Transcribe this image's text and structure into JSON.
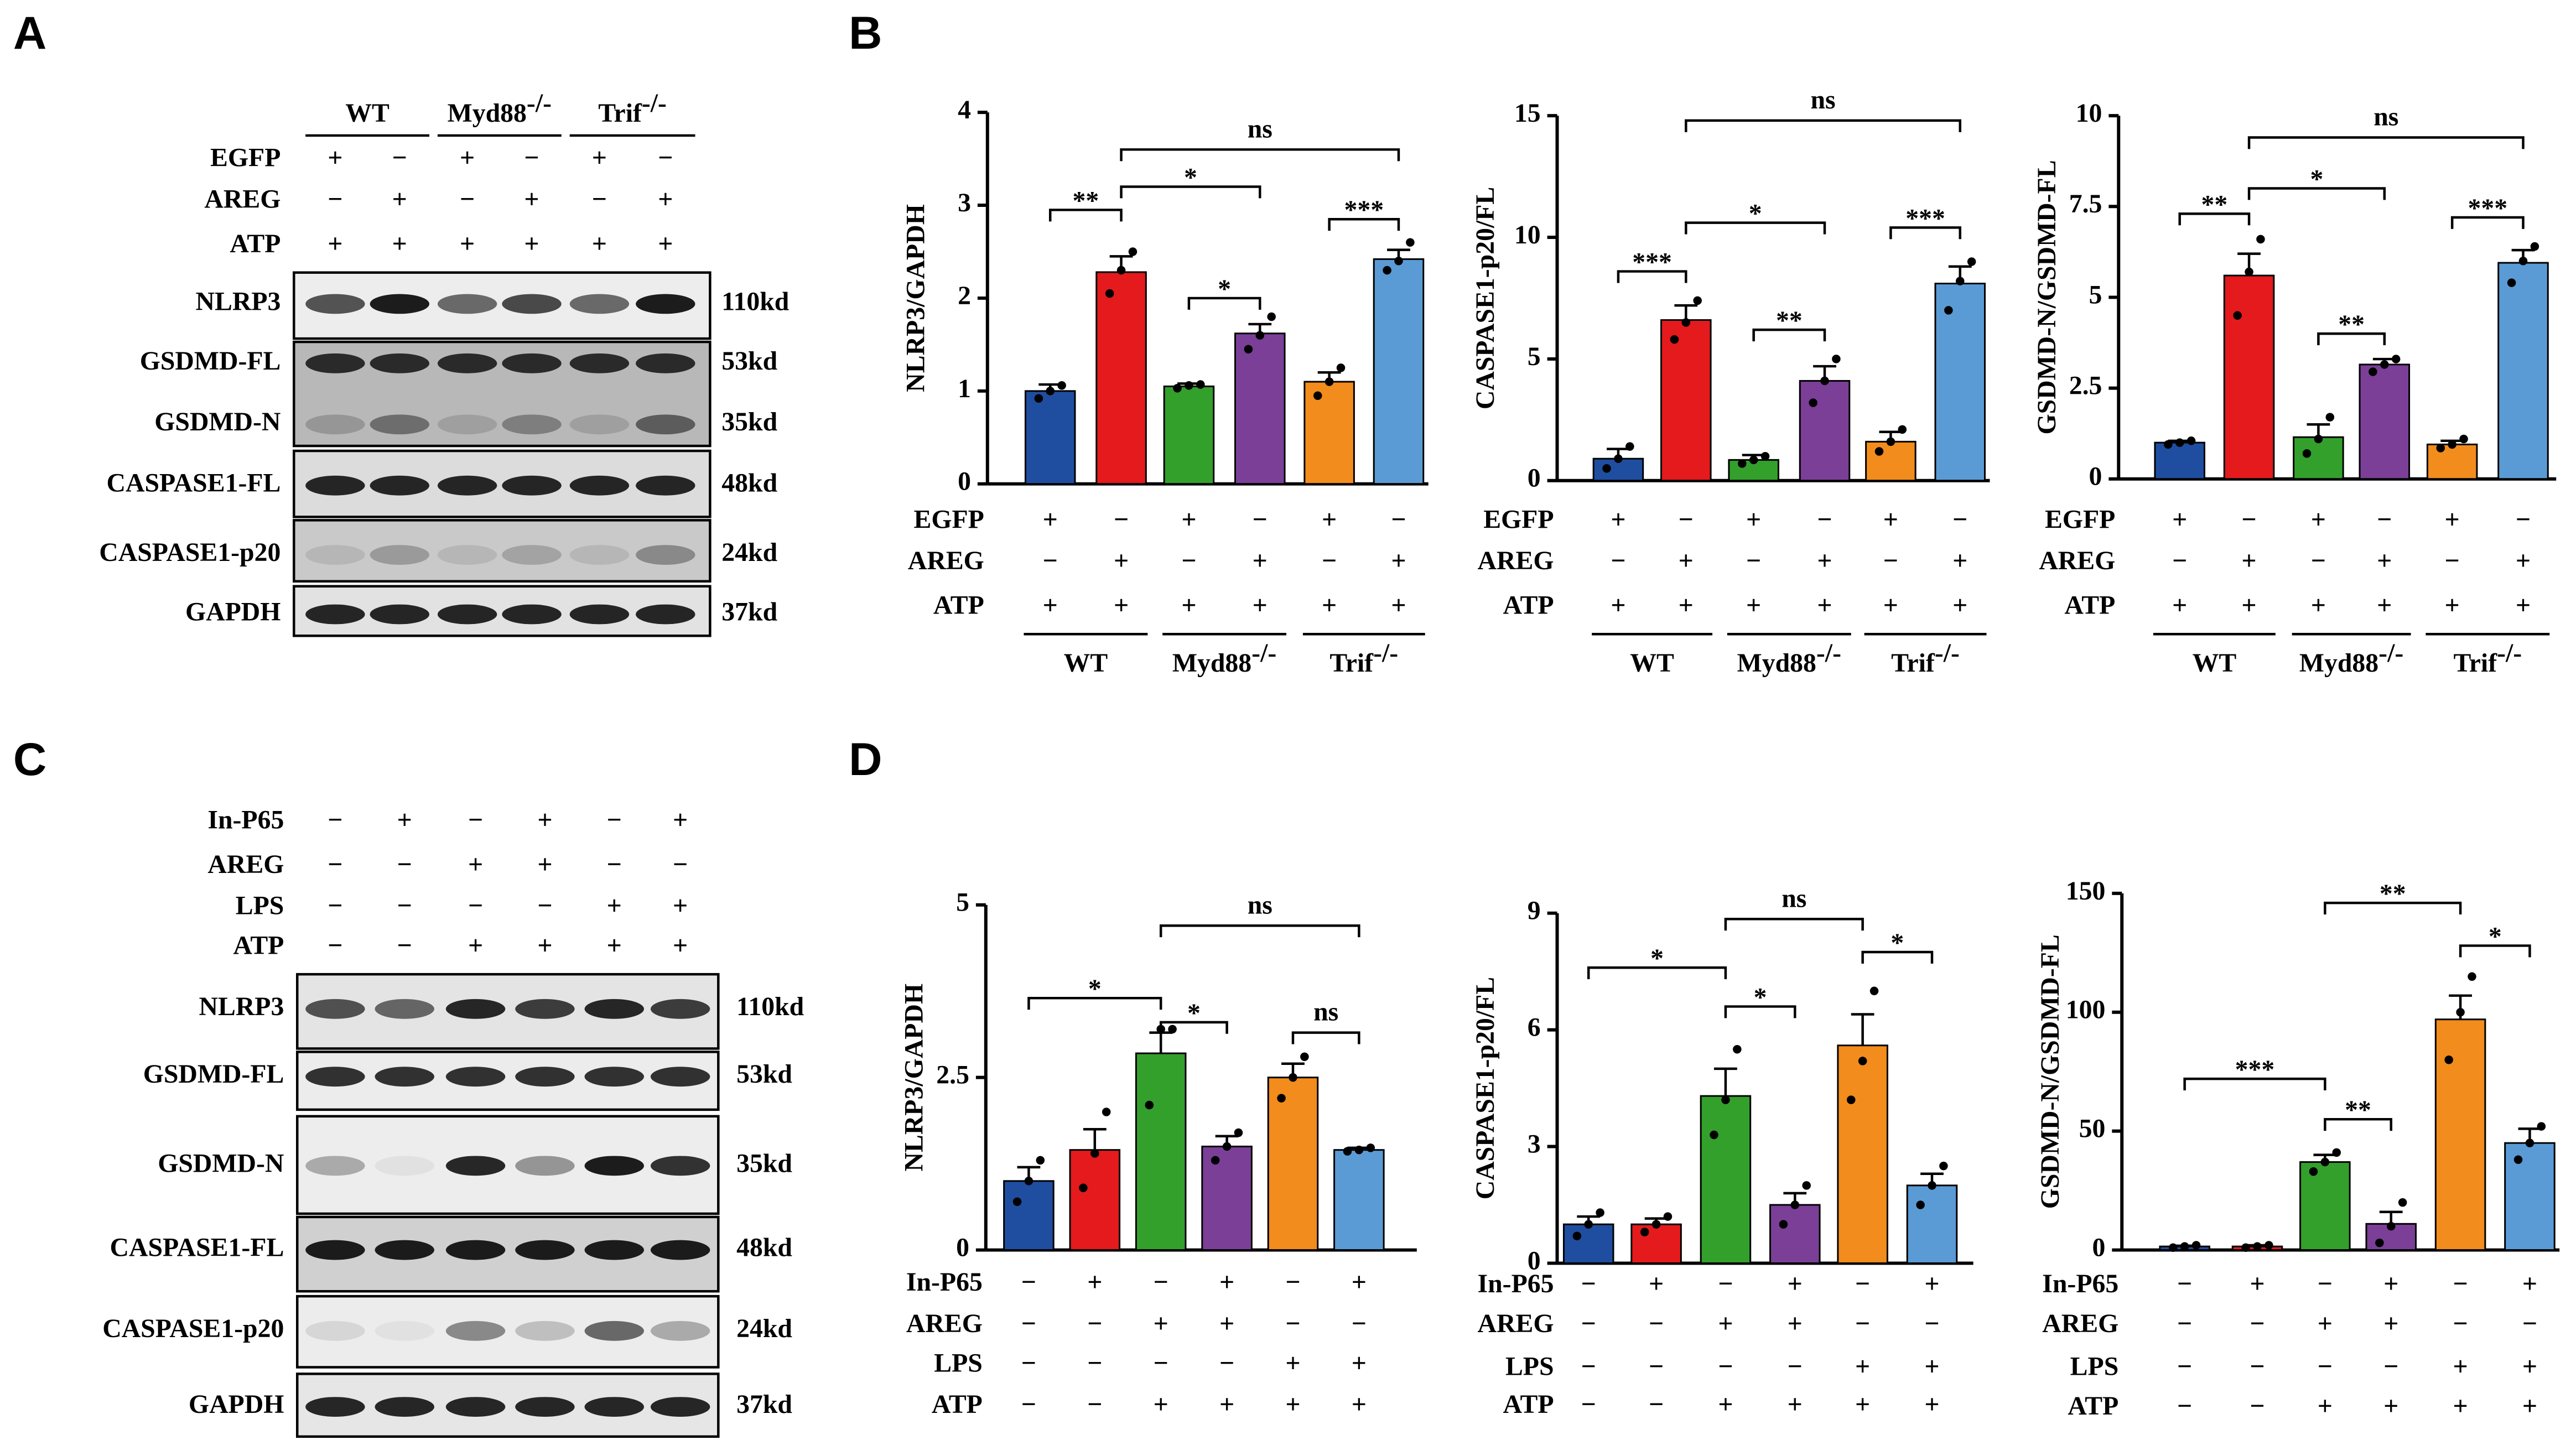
{
  "panel_labels": [
    "A",
    "B",
    "C",
    "D"
  ],
  "blots": [
    {
      "groups": [
        {
          "name": "WT"
        },
        {
          "name": "Myd88",
          "sup": "-/-"
        },
        {
          "name": "Trif",
          "sup": "-/-"
        }
      ],
      "treatments": [
        {
          "name": "EGFP",
          "signs": [
            "+",
            "−",
            "+",
            "−",
            "+",
            "−"
          ]
        },
        {
          "name": "AREG",
          "signs": [
            "−",
            "+",
            "−",
            "+",
            "−",
            "+"
          ]
        },
        {
          "name": "ATP",
          "signs": [
            "+",
            "+",
            "+",
            "+",
            "+",
            "+"
          ]
        }
      ],
      "proteins": [
        {
          "name": "NLRP3",
          "size": "110kd"
        },
        {
          "name": "GSDMD-FL",
          "size": "53kd"
        },
        {
          "name": "GSDMD-N",
          "size": "35kd"
        },
        {
          "name": "CASPASE1-FL",
          "size": "48kd"
        },
        {
          "name": "CASPASE1-p20",
          "size": "24kd"
        },
        {
          "name": "GAPDH",
          "size": "37kd"
        }
      ]
    },
    {
      "treatments": [
        {
          "name": "In-P65",
          "signs": [
            "−",
            "+",
            "−",
            "+",
            "−",
            "+"
          ]
        },
        {
          "name": "AREG",
          "signs": [
            "−",
            "−",
            "+",
            "+",
            "−",
            "−"
          ]
        },
        {
          "name": "LPS",
          "signs": [
            "−",
            "−",
            "−",
            "−",
            "+",
            "+"
          ]
        },
        {
          "name": "ATP",
          "signs": [
            "−",
            "−",
            "+",
            "+",
            "+",
            "+"
          ]
        }
      ],
      "proteins": [
        {
          "name": "NLRP3",
          "size": "110kd"
        },
        {
          "name": "GSDMD-FL",
          "size": "53kd"
        },
        {
          "name": "GSDMD-N",
          "size": "35kd"
        },
        {
          "name": "CASPASE1-FL",
          "size": "48kd"
        },
        {
          "name": "CASPASE1-p20",
          "size": "24kd"
        },
        {
          "name": "GAPDH",
          "size": "37kd"
        }
      ]
    }
  ],
  "chart_data": [
    {
      "type": "bar",
      "ylabel": "NLRP3/GAPDH",
      "ylim": [
        0,
        4
      ],
      "yticks": [
        0,
        1,
        2,
        3,
        4
      ],
      "colors": [
        "#1f4ea1",
        "#e41a1c",
        "#33a02c",
        "#7b3f98",
        "#f28c1c",
        "#5b9bd5"
      ],
      "values": [
        1.0,
        2.28,
        1.05,
        1.62,
        1.1,
        2.42
      ],
      "errors": [
        0.07,
        0.17,
        0.03,
        0.1,
        0.1,
        0.1
      ],
      "points": [
        [
          0.92,
          1.0,
          1.06
        ],
        [
          2.05,
          2.3,
          2.5
        ],
        [
          1.03,
          1.06,
          1.07
        ],
        [
          1.45,
          1.6,
          1.8
        ],
        [
          0.95,
          1.1,
          1.25
        ],
        [
          2.3,
          2.4,
          2.6
        ]
      ],
      "comparisons": [
        {
          "pair": [
            0,
            1
          ],
          "label": "**",
          "y": 2.95
        },
        {
          "pair": [
            2,
            3
          ],
          "label": "*",
          "y": 2.0
        },
        {
          "pair": [
            4,
            5
          ],
          "label": "***",
          "y": 2.85
        },
        {
          "pair": [
            1,
            3
          ],
          "label": "*",
          "y": 3.2
        },
        {
          "pair": [
            1,
            5
          ],
          "label": "ns",
          "y": 3.6
        }
      ],
      "treatments": [
        {
          "name": "EGFP",
          "signs": [
            "+",
            "−",
            "+",
            "−",
            "+",
            "−"
          ]
        },
        {
          "name": "AREG",
          "signs": [
            "−",
            "+",
            "−",
            "+",
            "−",
            "+"
          ]
        },
        {
          "name": "ATP",
          "signs": [
            "+",
            "+",
            "+",
            "+",
            "+",
            "+"
          ]
        }
      ],
      "groups": [
        {
          "name": "WT"
        },
        {
          "name": "Myd88",
          "sup": "-/-"
        },
        {
          "name": "Trif",
          "sup": "-/-"
        }
      ]
    },
    {
      "type": "bar",
      "ylabel": "CASPASE1-p20/FL",
      "ylim": [
        0,
        15
      ],
      "yticks": [
        0,
        5,
        10,
        15
      ],
      "colors": [
        "#1f4ea1",
        "#e41a1c",
        "#33a02c",
        "#7b3f98",
        "#f28c1c",
        "#5b9bd5"
      ],
      "values": [
        0.9,
        6.6,
        0.85,
        4.1,
        1.6,
        8.1
      ],
      "errors": [
        0.4,
        0.6,
        0.2,
        0.6,
        0.4,
        0.7
      ],
      "points": [
        [
          0.5,
          0.9,
          1.4
        ],
        [
          5.8,
          6.5,
          7.4
        ],
        [
          0.7,
          0.85,
          1.0
        ],
        [
          3.2,
          4.1,
          5.0
        ],
        [
          1.2,
          1.6,
          2.1
        ],
        [
          7.0,
          8.2,
          9.0
        ]
      ],
      "comparisons": [
        {
          "pair": [
            0,
            1
          ],
          "label": "***",
          "y": 8.6
        },
        {
          "pair": [
            2,
            3
          ],
          "label": "**",
          "y": 6.2
        },
        {
          "pair": [
            4,
            5
          ],
          "label": "***",
          "y": 10.4
        },
        {
          "pair": [
            1,
            3
          ],
          "label": "*",
          "y": 10.6
        },
        {
          "pair": [
            1,
            5
          ],
          "label": "ns",
          "y": 14.8
        }
      ],
      "treatments": [
        {
          "name": "EGFP",
          "signs": [
            "+",
            "−",
            "+",
            "−",
            "+",
            "−"
          ]
        },
        {
          "name": "AREG",
          "signs": [
            "−",
            "+",
            "−",
            "+",
            "−",
            "+"
          ]
        },
        {
          "name": "ATP",
          "signs": [
            "+",
            "+",
            "+",
            "+",
            "+",
            "+"
          ]
        }
      ],
      "groups": [
        {
          "name": "WT"
        },
        {
          "name": "Myd88",
          "sup": "-/-"
        },
        {
          "name": "Trif",
          "sup": "-/-"
        }
      ]
    },
    {
      "type": "bar",
      "ylabel": "GSDMD-N/GSDMD-FL",
      "ylim": [
        0,
        10
      ],
      "yticks": [
        0,
        2.5,
        5,
        7.5,
        10
      ],
      "colors": [
        "#1f4ea1",
        "#e41a1c",
        "#33a02c",
        "#7b3f98",
        "#f28c1c",
        "#5b9bd5"
      ],
      "values": [
        1.0,
        5.6,
        1.15,
        3.15,
        0.95,
        5.95
      ],
      "errors": [
        0.05,
        0.6,
        0.35,
        0.15,
        0.1,
        0.35
      ],
      "points": [
        [
          0.95,
          1.0,
          1.05
        ],
        [
          4.5,
          5.7,
          6.6
        ],
        [
          0.7,
          1.1,
          1.7
        ],
        [
          2.95,
          3.15,
          3.3
        ],
        [
          0.85,
          0.95,
          1.1
        ],
        [
          5.4,
          6.0,
          6.4
        ]
      ],
      "comparisons": [
        {
          "pair": [
            0,
            1
          ],
          "label": "**",
          "y": 7.3
        },
        {
          "pair": [
            2,
            3
          ],
          "label": "**",
          "y": 4.0
        },
        {
          "pair": [
            4,
            5
          ],
          "label": "***",
          "y": 7.2
        },
        {
          "pair": [
            1,
            3
          ],
          "label": "*",
          "y": 8.0
        },
        {
          "pair": [
            1,
            5
          ],
          "label": "ns",
          "y": 9.4
        }
      ],
      "treatments": [
        {
          "name": "EGFP",
          "signs": [
            "+",
            "−",
            "+",
            "−",
            "+",
            "−"
          ]
        },
        {
          "name": "AREG",
          "signs": [
            "−",
            "+",
            "−",
            "+",
            "−",
            "+"
          ]
        },
        {
          "name": "ATP",
          "signs": [
            "+",
            "+",
            "+",
            "+",
            "+",
            "+"
          ]
        }
      ],
      "groups": [
        {
          "name": "WT"
        },
        {
          "name": "Myd88",
          "sup": "-/-"
        },
        {
          "name": "Trif",
          "sup": "-/-"
        }
      ]
    },
    {
      "type": "bar",
      "ylabel": "NLRP3/GAPDH",
      "ylim": [
        0,
        5
      ],
      "yticks": [
        0,
        2.5,
        5
      ],
      "colors": [
        "#1f4ea1",
        "#e41a1c",
        "#33a02c",
        "#7b3f98",
        "#f28c1c",
        "#5b9bd5"
      ],
      "values": [
        1.0,
        1.45,
        2.85,
        1.5,
        2.5,
        1.45
      ],
      "errors": [
        0.2,
        0.3,
        0.3,
        0.15,
        0.2,
        0.03
      ],
      "points": [
        [
          0.7,
          1.0,
          1.3
        ],
        [
          0.9,
          1.4,
          2.0
        ],
        [
          2.1,
          3.2,
          3.2
        ],
        [
          1.3,
          1.5,
          1.7
        ],
        [
          2.2,
          2.5,
          2.8
        ],
        [
          1.43,
          1.45,
          1.48
        ]
      ],
      "comparisons": [
        {
          "pair": [
            0,
            2
          ],
          "label": "*",
          "y": 3.65
        },
        {
          "pair": [
            2,
            3
          ],
          "label": "*",
          "y": 3.3
        },
        {
          "pair": [
            2,
            5
          ],
          "label": "ns",
          "y": 4.7
        },
        {
          "pair": [
            4,
            5
          ],
          "label": "ns",
          "y": 3.15
        }
      ],
      "treatments": [
        {
          "name": "In-P65",
          "signs": [
            "−",
            "+",
            "−",
            "+",
            "−",
            "+"
          ]
        },
        {
          "name": "AREG",
          "signs": [
            "−",
            "−",
            "+",
            "+",
            "−",
            "−"
          ]
        },
        {
          "name": "LPS",
          "signs": [
            "−",
            "−",
            "−",
            "−",
            "+",
            "+"
          ]
        },
        {
          "name": "ATP",
          "signs": [
            "−",
            "−",
            "+",
            "+",
            "+",
            "+"
          ]
        }
      ]
    },
    {
      "type": "bar",
      "ylabel": "CASPASE1-p20/FL",
      "ylim": [
        0,
        9
      ],
      "yticks": [
        0,
        3,
        6,
        9
      ],
      "colors": [
        "#1f4ea1",
        "#e41a1c",
        "#33a02c",
        "#7b3f98",
        "#f28c1c",
        "#5b9bd5"
      ],
      "values": [
        1.0,
        1.0,
        4.3,
        1.5,
        5.6,
        2.0
      ],
      "errors": [
        0.2,
        0.15,
        0.7,
        0.3,
        0.8,
        0.3
      ],
      "points": [
        [
          0.7,
          1.0,
          1.3
        ],
        [
          0.8,
          1.0,
          1.2
        ],
        [
          3.3,
          4.2,
          5.5
        ],
        [
          1.0,
          1.5,
          2.0
        ],
        [
          4.2,
          5.2,
          7.0
        ],
        [
          1.5,
          2.0,
          2.5
        ]
      ],
      "comparisons": [
        {
          "pair": [
            0,
            2
          ],
          "label": "*",
          "y": 7.6
        },
        {
          "pair": [
            2,
            3
          ],
          "label": "*",
          "y": 6.6
        },
        {
          "pair": [
            2,
            4
          ],
          "label": "ns",
          "y": 8.85
        },
        {
          "pair": [
            4,
            5
          ],
          "label": "*",
          "y": 8.0
        }
      ],
      "treatments": [
        {
          "name": "In-P65",
          "signs": [
            "−",
            "+",
            "−",
            "+",
            "−",
            "+"
          ]
        },
        {
          "name": "AREG",
          "signs": [
            "−",
            "−",
            "+",
            "+",
            "−",
            "−"
          ]
        },
        {
          "name": "LPS",
          "signs": [
            "−",
            "−",
            "−",
            "−",
            "+",
            "+"
          ]
        },
        {
          "name": "ATP",
          "signs": [
            "−",
            "−",
            "+",
            "+",
            "+",
            "+"
          ]
        }
      ]
    },
    {
      "type": "bar",
      "ylabel": "GSDMD-N/GSDMD-FL",
      "ylim": [
        0,
        150
      ],
      "yticks": [
        0,
        50,
        100,
        150
      ],
      "colors": [
        "#1f4ea1",
        "#e41a1c",
        "#33a02c",
        "#7b3f98",
        "#f28c1c",
        "#5b9bd5"
      ],
      "values": [
        1.5,
        1.5,
        37,
        11,
        97,
        45
      ],
      "errors": [
        0.3,
        0.5,
        3,
        5,
        10,
        6
      ],
      "points": [
        [
          1.0,
          1.5,
          2.0
        ],
        [
          1.0,
          1.5,
          2.0
        ],
        [
          33,
          37,
          41
        ],
        [
          3,
          10,
          20
        ],
        [
          80,
          100,
          115
        ],
        [
          38,
          45,
          52
        ]
      ],
      "comparisons": [
        {
          "pair": [
            0,
            2
          ],
          "label": "***",
          "y": 72
        },
        {
          "pair": [
            2,
            3
          ],
          "label": "**",
          "y": 55
        },
        {
          "pair": [
            2,
            4
          ],
          "label": "**",
          "y": 146
        },
        {
          "pair": [
            4,
            5
          ],
          "label": "*",
          "y": 128
        }
      ],
      "treatments": [
        {
          "name": "In-P65",
          "signs": [
            "−",
            "+",
            "−",
            "+",
            "−",
            "+"
          ]
        },
        {
          "name": "AREG",
          "signs": [
            "−",
            "−",
            "+",
            "+",
            "−",
            "−"
          ]
        },
        {
          "name": "LPS",
          "signs": [
            "−",
            "−",
            "−",
            "−",
            "+",
            "+"
          ]
        },
        {
          "name": "ATP",
          "signs": [
            "−",
            "−",
            "+",
            "+",
            "+",
            "+"
          ]
        }
      ]
    }
  ]
}
